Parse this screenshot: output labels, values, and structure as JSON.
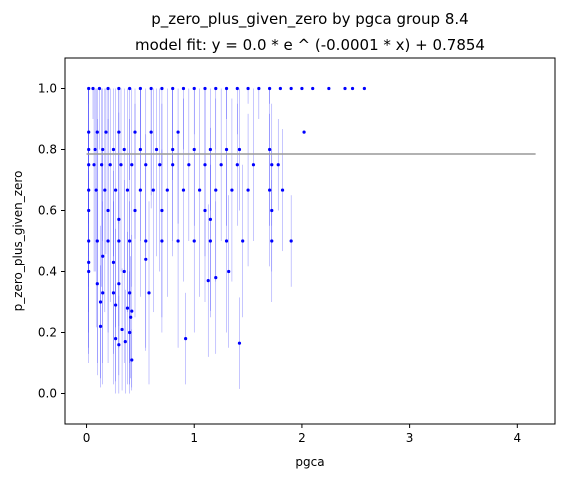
{
  "chart_data": {
    "type": "scatter",
    "title": "p_zero_plus_given_zero by pgca group 8.4",
    "subtitle": "model fit: y = 0.0 * e ^ (-0.0001 * x) + 0.7854",
    "xlabel": "pgca",
    "ylabel": "p_zero_plus_given_zero",
    "xlim": [
      -0.2,
      4.35
    ],
    "ylim": [
      -0.1,
      1.1
    ],
    "xticks": [
      0,
      1,
      2,
      3,
      4
    ],
    "xtick_labels": [
      "0",
      "1",
      "2",
      "3",
      "4"
    ],
    "yticks": [
      0.0,
      0.2,
      0.4,
      0.6,
      0.8,
      1.0
    ],
    "ytick_labels": [
      "0.0",
      "0.2",
      "0.4",
      "0.6",
      "0.8",
      "1.0"
    ],
    "grid": false,
    "colors": {
      "points": "#0000ff",
      "errorbars": "#0000ff",
      "fit": "#999999"
    },
    "fit_line": {
      "x": [
        0.0,
        4.17
      ],
      "y": [
        0.7854,
        0.7854
      ]
    },
    "series": [
      {
        "points": [
          {
            "x": 0.02,
            "y": 1.0,
            "err": 0.05
          },
          {
            "x": 0.06,
            "y": 1.0,
            "err": 0.1
          },
          {
            "x": 0.12,
            "y": 1.0,
            "err": 0.2
          },
          {
            "x": 0.2,
            "y": 1.0,
            "err": 0.15
          },
          {
            "x": 0.3,
            "y": 1.0,
            "err": 0.25
          },
          {
            "x": 0.4,
            "y": 1.0,
            "err": 0.3
          },
          {
            "x": 0.5,
            "y": 1.0,
            "err": 0.2
          },
          {
            "x": 0.6,
            "y": 1.0,
            "err": 0.35
          },
          {
            "x": 0.7,
            "y": 1.0,
            "err": 0.25
          },
          {
            "x": 0.8,
            "y": 1.0,
            "err": 0.3
          },
          {
            "x": 0.9,
            "y": 1.0,
            "err": 0.2
          },
          {
            "x": 1.0,
            "y": 1.0,
            "err": 0.15
          },
          {
            "x": 1.1,
            "y": 1.0,
            "err": 0.1
          },
          {
            "x": 1.2,
            "y": 1.0,
            "err": 0.2
          },
          {
            "x": 1.3,
            "y": 1.0,
            "err": 0.1
          },
          {
            "x": 1.4,
            "y": 1.0,
            "err": 0.15
          },
          {
            "x": 1.5,
            "y": 1.0,
            "err": 0.05
          },
          {
            "x": 1.6,
            "y": 1.0,
            "err": 0.1
          },
          {
            "x": 1.7,
            "y": 1.0,
            "err": 0.05
          },
          {
            "x": 1.8,
            "y": 1.0,
            "err": 0.0
          },
          {
            "x": 1.9,
            "y": 1.0,
            "err": 0.0
          },
          {
            "x": 2.0,
            "y": 1.0,
            "err": 0.0
          },
          {
            "x": 2.1,
            "y": 1.0,
            "err": 0.0
          },
          {
            "x": 2.25,
            "y": 1.0,
            "err": 0.0
          },
          {
            "x": 2.4,
            "y": 1.0,
            "err": 0.0
          },
          {
            "x": 2.47,
            "y": 1.0,
            "err": 0.0
          },
          {
            "x": 2.58,
            "y": 1.0,
            "err": 0.0
          },
          {
            "x": 0.02,
            "y": 0.857,
            "err": 0.3
          },
          {
            "x": 0.1,
            "y": 0.857,
            "err": 0.35
          },
          {
            "x": 0.18,
            "y": 0.857,
            "err": 0.4
          },
          {
            "x": 0.3,
            "y": 0.857,
            "err": 0.3
          },
          {
            "x": 0.45,
            "y": 0.857,
            "err": 0.35
          },
          {
            "x": 0.6,
            "y": 0.857,
            "err": 0.25
          },
          {
            "x": 0.85,
            "y": 0.857,
            "err": 0.3
          },
          {
            "x": 2.02,
            "y": 0.857,
            "err": 0.0
          },
          {
            "x": 0.02,
            "y": 0.8,
            "err": 0.35
          },
          {
            "x": 0.08,
            "y": 0.8,
            "err": 0.4
          },
          {
            "x": 0.15,
            "y": 0.8,
            "err": 0.3
          },
          {
            "x": 0.25,
            "y": 0.8,
            "err": 0.35
          },
          {
            "x": 0.35,
            "y": 0.8,
            "err": 0.4
          },
          {
            "x": 0.5,
            "y": 0.8,
            "err": 0.3
          },
          {
            "x": 0.65,
            "y": 0.8,
            "err": 0.35
          },
          {
            "x": 0.8,
            "y": 0.8,
            "err": 0.3
          },
          {
            "x": 1.0,
            "y": 0.8,
            "err": 0.25
          },
          {
            "x": 1.15,
            "y": 0.8,
            "err": 0.2
          },
          {
            "x": 1.3,
            "y": 0.8,
            "err": 0.25
          },
          {
            "x": 1.42,
            "y": 0.8,
            "err": 0.2
          },
          {
            "x": 1.7,
            "y": 0.8,
            "err": 0.25
          },
          {
            "x": 0.02,
            "y": 0.75,
            "err": 0.4
          },
          {
            "x": 0.07,
            "y": 0.75,
            "err": 0.35
          },
          {
            "x": 0.14,
            "y": 0.75,
            "err": 0.4
          },
          {
            "x": 0.22,
            "y": 0.75,
            "err": 0.45
          },
          {
            "x": 0.32,
            "y": 0.75,
            "err": 0.35
          },
          {
            "x": 0.42,
            "y": 0.75,
            "err": 0.4
          },
          {
            "x": 0.55,
            "y": 0.75,
            "err": 0.3
          },
          {
            "x": 0.68,
            "y": 0.75,
            "err": 0.35
          },
          {
            "x": 0.8,
            "y": 0.75,
            "err": 0.3
          },
          {
            "x": 0.95,
            "y": 0.75,
            "err": 0.25
          },
          {
            "x": 1.1,
            "y": 0.75,
            "err": 0.3
          },
          {
            "x": 1.25,
            "y": 0.75,
            "err": 0.25
          },
          {
            "x": 1.4,
            "y": 0.75,
            "err": 0.2
          },
          {
            "x": 1.55,
            "y": 0.75,
            "err": 0.25
          },
          {
            "x": 1.72,
            "y": 0.75,
            "err": 0.2
          },
          {
            "x": 1.78,
            "y": 0.75,
            "err": 0.15
          },
          {
            "x": 0.02,
            "y": 0.667,
            "err": 0.4
          },
          {
            "x": 0.09,
            "y": 0.667,
            "err": 0.45
          },
          {
            "x": 0.17,
            "y": 0.667,
            "err": 0.4
          },
          {
            "x": 0.27,
            "y": 0.667,
            "err": 0.45
          },
          {
            "x": 0.38,
            "y": 0.667,
            "err": 0.4
          },
          {
            "x": 0.5,
            "y": 0.667,
            "err": 0.35
          },
          {
            "x": 0.62,
            "y": 0.667,
            "err": 0.4
          },
          {
            "x": 0.75,
            "y": 0.667,
            "err": 0.35
          },
          {
            "x": 0.9,
            "y": 0.667,
            "err": 0.3
          },
          {
            "x": 1.05,
            "y": 0.667,
            "err": 0.35
          },
          {
            "x": 1.2,
            "y": 0.667,
            "err": 0.3
          },
          {
            "x": 1.35,
            "y": 0.667,
            "err": 0.3
          },
          {
            "x": 1.5,
            "y": 0.667,
            "err": 0.25
          },
          {
            "x": 1.7,
            "y": 0.667,
            "err": 0.25
          },
          {
            "x": 1.82,
            "y": 0.667,
            "err": 0.2
          },
          {
            "x": 0.02,
            "y": 0.6,
            "err": 0.4
          },
          {
            "x": 0.2,
            "y": 0.6,
            "err": 0.4
          },
          {
            "x": 0.45,
            "y": 0.6,
            "err": 0.35
          },
          {
            "x": 0.7,
            "y": 0.6,
            "err": 0.35
          },
          {
            "x": 1.1,
            "y": 0.6,
            "err": 0.3
          },
          {
            "x": 1.72,
            "y": 0.6,
            "err": 0.2
          },
          {
            "x": 0.3,
            "y": 0.571,
            "err": 0.35
          },
          {
            "x": 1.15,
            "y": 0.571,
            "err": 0.3
          },
          {
            "x": 0.02,
            "y": 0.5,
            "err": 0.35
          },
          {
            "x": 0.1,
            "y": 0.5,
            "err": 0.4
          },
          {
            "x": 0.2,
            "y": 0.5,
            "err": 0.4
          },
          {
            "x": 0.3,
            "y": 0.5,
            "err": 0.35
          },
          {
            "x": 0.4,
            "y": 0.5,
            "err": 0.4
          },
          {
            "x": 0.55,
            "y": 0.5,
            "err": 0.35
          },
          {
            "x": 0.7,
            "y": 0.5,
            "err": 0.3
          },
          {
            "x": 0.85,
            "y": 0.5,
            "err": 0.35
          },
          {
            "x": 1.0,
            "y": 0.5,
            "err": 0.3
          },
          {
            "x": 1.15,
            "y": 0.5,
            "err": 0.25
          },
          {
            "x": 1.3,
            "y": 0.5,
            "err": 0.3
          },
          {
            "x": 1.45,
            "y": 0.5,
            "err": 0.25
          },
          {
            "x": 1.72,
            "y": 0.5,
            "err": 0.2
          },
          {
            "x": 1.9,
            "y": 0.5,
            "err": 0.15
          },
          {
            "x": 0.02,
            "y": 0.43,
            "err": 0.3
          },
          {
            "x": 0.02,
            "y": 0.4,
            "err": 0.3
          },
          {
            "x": 0.15,
            "y": 0.45,
            "err": 0.35
          },
          {
            "x": 0.25,
            "y": 0.43,
            "err": 0.3
          },
          {
            "x": 0.35,
            "y": 0.4,
            "err": 0.3
          },
          {
            "x": 0.55,
            "y": 0.44,
            "err": 0.3
          },
          {
            "x": 1.32,
            "y": 0.4,
            "err": 0.25
          },
          {
            "x": 0.1,
            "y": 0.36,
            "err": 0.3
          },
          {
            "x": 0.15,
            "y": 0.33,
            "err": 0.3
          },
          {
            "x": 0.25,
            "y": 0.33,
            "err": 0.3
          },
          {
            "x": 0.3,
            "y": 0.36,
            "err": 0.3
          },
          {
            "x": 0.4,
            "y": 0.33,
            "err": 0.3
          },
          {
            "x": 0.58,
            "y": 0.33,
            "err": 0.3
          },
          {
            "x": 1.13,
            "y": 0.37,
            "err": 0.25
          },
          {
            "x": 1.2,
            "y": 0.38,
            "err": 0.25
          },
          {
            "x": 0.13,
            "y": 0.3,
            "err": 0.25
          },
          {
            "x": 0.27,
            "y": 0.29,
            "err": 0.25
          },
          {
            "x": 0.38,
            "y": 0.28,
            "err": 0.25
          },
          {
            "x": 0.42,
            "y": 0.27,
            "err": 0.25
          },
          {
            "x": 0.41,
            "y": 0.25,
            "err": 0.2
          },
          {
            "x": 0.13,
            "y": 0.22,
            "err": 0.2
          },
          {
            "x": 0.33,
            "y": 0.21,
            "err": 0.2
          },
          {
            "x": 0.4,
            "y": 0.2,
            "err": 0.2
          },
          {
            "x": 0.27,
            "y": 0.18,
            "err": 0.18
          },
          {
            "x": 0.3,
            "y": 0.16,
            "err": 0.16
          },
          {
            "x": 0.36,
            "y": 0.17,
            "err": 0.17
          },
          {
            "x": 0.92,
            "y": 0.18,
            "err": 0.15
          },
          {
            "x": 1.42,
            "y": 0.165,
            "err": 0.15
          },
          {
            "x": 0.42,
            "y": 0.11,
            "err": 0.1
          }
        ]
      }
    ]
  }
}
